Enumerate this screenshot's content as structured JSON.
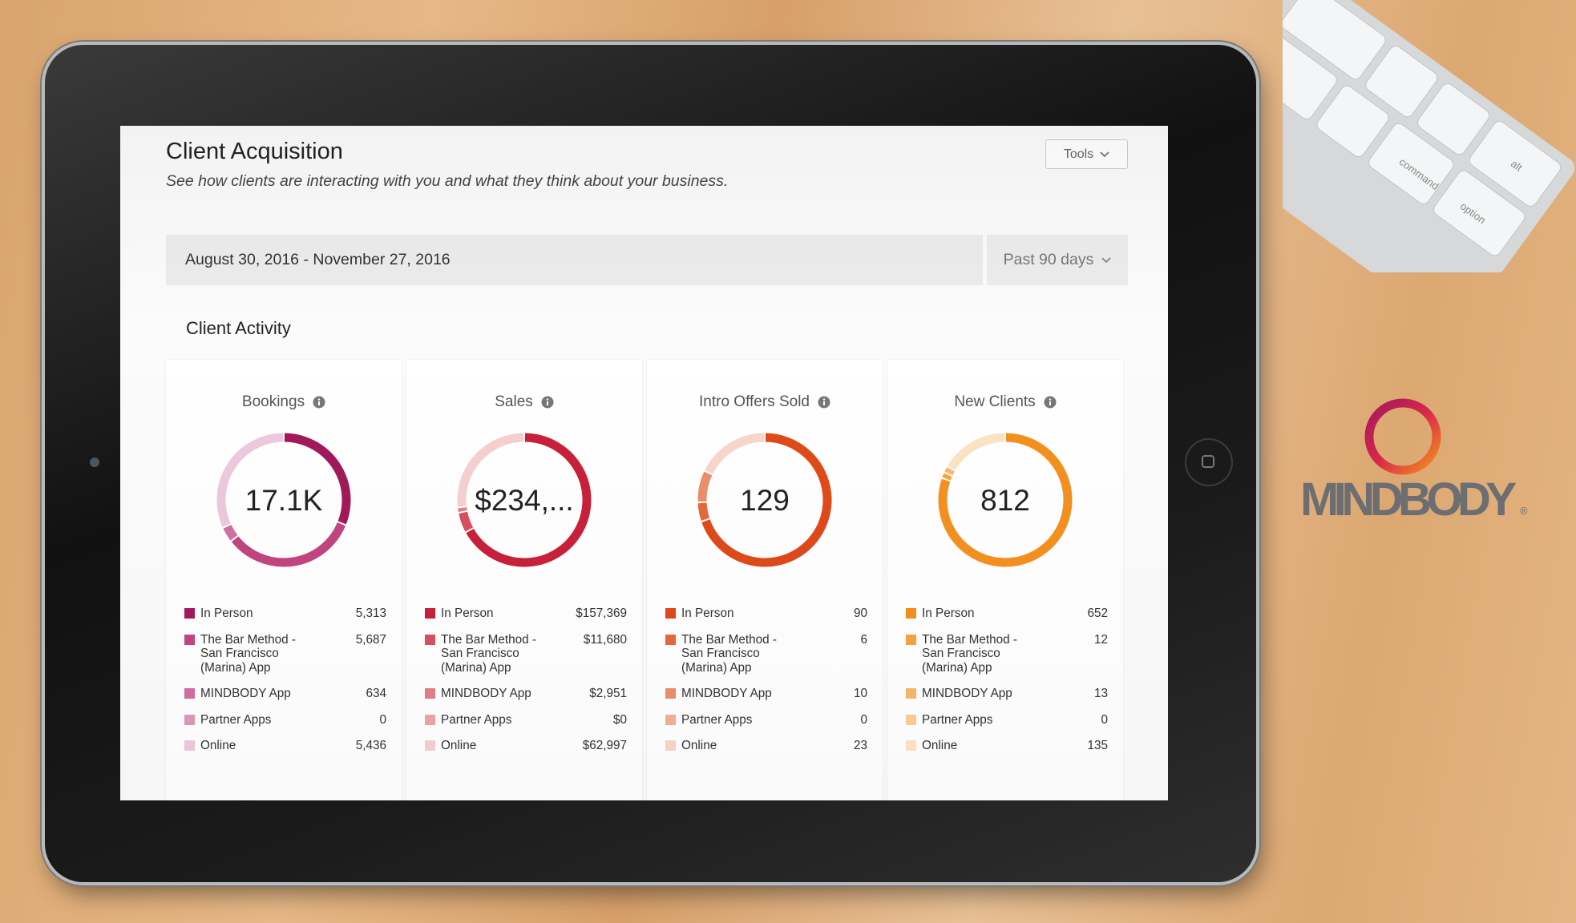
{
  "header": {
    "title": "Client Acquisition",
    "subtitle": "See how clients are interacting with you and what they think about your business.",
    "tools": "Tools"
  },
  "date_range": {
    "range": "August 30, 2016 - November 27, 2016",
    "period": "Past 90 days"
  },
  "section_title": "Client Activity",
  "chart_data": [
    {
      "type": "donut",
      "title": "Bookings",
      "center_label": "17.1K",
      "categories": [
        "In Person",
        "The Bar Method - San Francisco (Marina) App",
        "MINDBODY App",
        "Partner Apps",
        "Online"
      ],
      "values": [
        5313,
        5687,
        634,
        0,
        5436
      ],
      "value_labels": [
        "5,313",
        "5,687",
        "634",
        "0",
        "5,436"
      ],
      "colors": [
        "#a3195b",
        "#c2457f",
        "#d070a0",
        "#dc98bb",
        "#ecc9dc"
      ]
    },
    {
      "type": "donut",
      "title": "Sales",
      "center_label": "$234,...",
      "categories": [
        "In Person",
        "The Bar Method - San Francisco (Marina) App",
        "MINDBODY App",
        "Partner Apps",
        "Online"
      ],
      "values": [
        157369,
        11680,
        2951,
        0,
        62997
      ],
      "value_labels": [
        "$157,369",
        "$11,680",
        "$2,951",
        "$0",
        "$62,997"
      ],
      "colors": [
        "#c8203b",
        "#d95060",
        "#e27f87",
        "#eca4a8",
        "#f6d0d1"
      ]
    },
    {
      "type": "donut",
      "title": "Intro Offers Sold",
      "center_label": "129",
      "categories": [
        "In Person",
        "The Bar Method - San Francisco (Marina) App",
        "MINDBODY App",
        "Partner Apps",
        "Online"
      ],
      "values": [
        90,
        6,
        10,
        0,
        23
      ],
      "value_labels": [
        "90",
        "6",
        "10",
        "0",
        "23"
      ],
      "colors": [
        "#df4a1a",
        "#e5693c",
        "#ec8e6c",
        "#f2b09a",
        "#f8d6c9"
      ]
    },
    {
      "type": "donut",
      "title": "New Clients",
      "center_label": "812",
      "categories": [
        "In Person",
        "The Bar Method - San Francisco (Marina) App",
        "MINDBODY App",
        "Partner Apps",
        "Online"
      ],
      "values": [
        652,
        12,
        13,
        0,
        135
      ],
      "value_labels": [
        "652",
        "12",
        "13",
        "0",
        "135"
      ],
      "colors": [
        "#f4901e",
        "#f5a53f",
        "#f7b96a",
        "#f9cd96",
        "#fce3c4"
      ]
    }
  ],
  "brand": {
    "name": "MINDBODY",
    "mark": "®"
  },
  "keyboard_keys": [
    "command",
    "option",
    "alt"
  ]
}
